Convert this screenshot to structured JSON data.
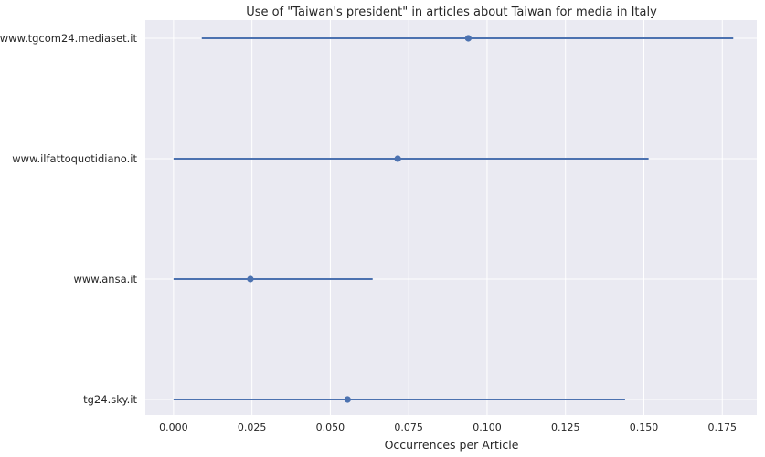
{
  "chart_data": {
    "type": "scatter",
    "title": "Use of \"Taiwan's president\" in articles about Taiwan for media in Italy",
    "xlabel": "Occurrences per Article",
    "ylabel": "",
    "xlim": [
      -0.009,
      0.186
    ],
    "x_ticks": [
      "0.000",
      "0.025",
      "0.050",
      "0.075",
      "0.100",
      "0.125",
      "0.150",
      "0.175"
    ],
    "x_tick_values": [
      0.0,
      0.025,
      0.05,
      0.075,
      0.1,
      0.125,
      0.15,
      0.175
    ],
    "categories": [
      "www.tgcom24.mediaset.it",
      "www.ilfattoquotidiano.it",
      "www.ansa.it",
      "tg24.sky.it"
    ],
    "series": [
      {
        "estimate": [
          0.094,
          0.0715,
          0.0245,
          0.0555
        ],
        "ci_low": [
          0.009,
          0.0,
          0.0,
          0.0
        ],
        "ci_high": [
          0.1785,
          0.1515,
          0.0635,
          0.144
        ]
      }
    ],
    "grid": true,
    "legend": "none",
    "colors": {
      "background": "#EAEAF2",
      "grid": "#FFFFFF",
      "series": "#4C72B0",
      "text": "#262626"
    }
  }
}
